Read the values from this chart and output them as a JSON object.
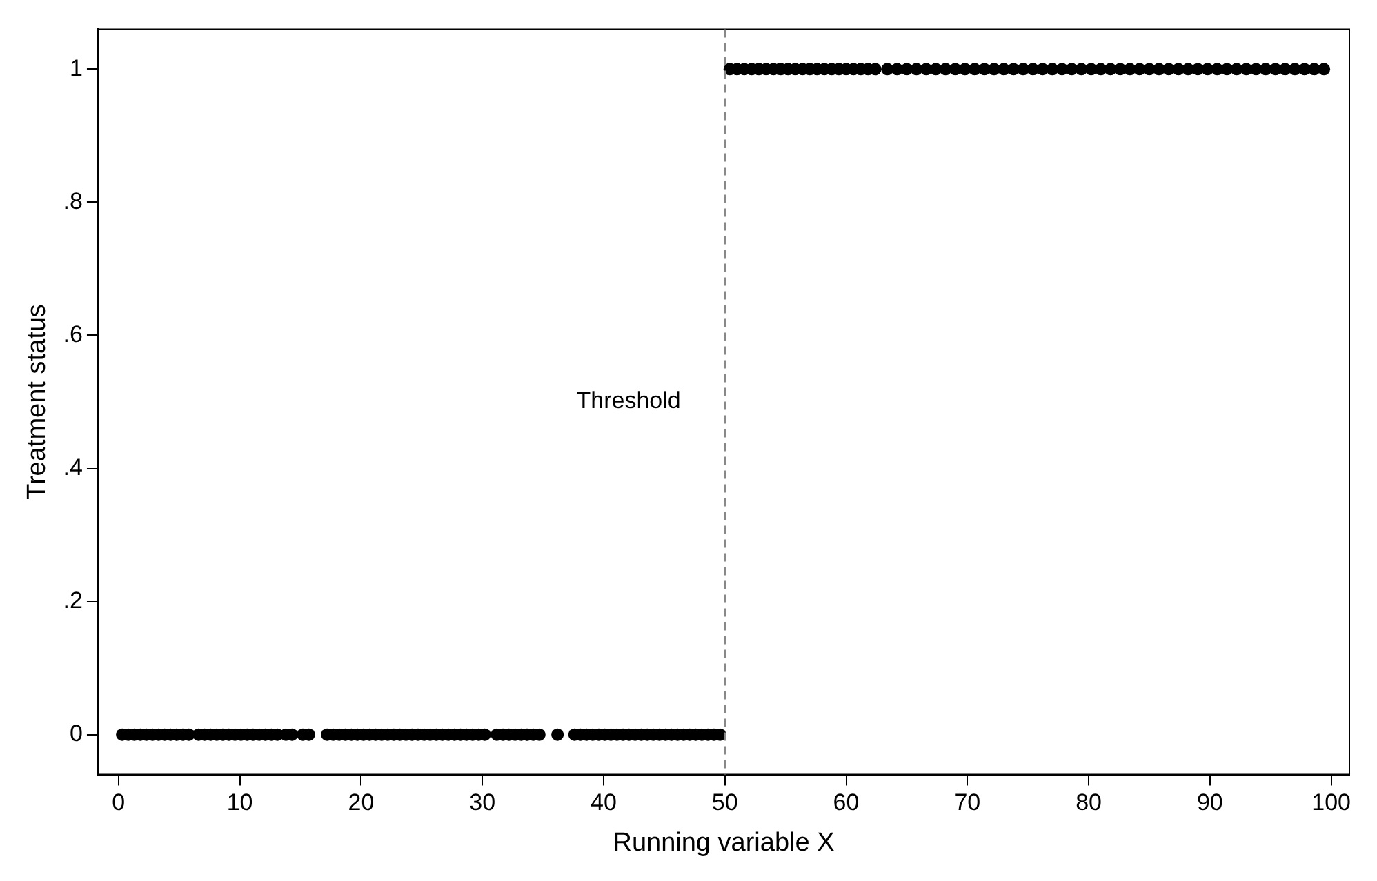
{
  "chart_data": {
    "type": "scatter",
    "xlabel": "Running variable X",
    "ylabel": "Treatment status",
    "xlim": [
      -1.7,
      101.5
    ],
    "xticks": [
      0,
      10,
      20,
      30,
      40,
      50,
      60,
      70,
      80,
      90,
      100
    ],
    "ylim": [
      -0.06,
      1.06
    ],
    "yticks": [
      0,
      {
        "value": 0.2,
        "label": ".2"
      },
      {
        "value": 0.4,
        "label": ".4"
      },
      {
        "value": 0.6,
        "label": ".6"
      },
      {
        "value": 0.8,
        "label": ".8"
      },
      1
    ],
    "grid": false,
    "legend": false,
    "marker": "circle",
    "ref_lines": [
      {
        "axis": "x",
        "value": 50,
        "label": "Threshold",
        "color": "#888888",
        "line_style": "dashed"
      }
    ],
    "series": [
      {
        "color": "#000000",
        "x": [
          0.3,
          0.8,
          1.3,
          1.8,
          2.3,
          2.8,
          3.3,
          3.8,
          4.3,
          4.8,
          5.3,
          5.8,
          6.6,
          7.1,
          7.6,
          8.1,
          8.6,
          9.1,
          9.6,
          10.1,
          10.6,
          11.1,
          11.6,
          12.1,
          12.6,
          13.1,
          13.8,
          14.3,
          15.2,
          15.7,
          17.2,
          17.7,
          18.2,
          18.7,
          19.2,
          19.7,
          20.2,
          20.7,
          21.2,
          21.7,
          22.2,
          22.7,
          23.2,
          23.7,
          24.2,
          24.7,
          25.2,
          25.7,
          26.2,
          26.7,
          27.2,
          27.7,
          28.2,
          28.7,
          29.2,
          29.7,
          30.2,
          31.2,
          31.7,
          32.2,
          32.7,
          33.2,
          33.7,
          34.2,
          34.7,
          36.2,
          37.6,
          38.1,
          38.6,
          39.1,
          39.6,
          40.1,
          40.6,
          41.1,
          41.6,
          42.1,
          42.6,
          43.1,
          43.6,
          44.1,
          44.6,
          45.1,
          45.6,
          46.1,
          46.6,
          47.1,
          47.6,
          48.1,
          48.6,
          49.1,
          49.6
        ],
        "values": [
          0,
          0,
          0,
          0,
          0,
          0,
          0,
          0,
          0,
          0,
          0,
          0,
          0,
          0,
          0,
          0,
          0,
          0,
          0,
          0,
          0,
          0,
          0,
          0,
          0,
          0,
          0,
          0,
          0,
          0,
          0,
          0,
          0,
          0,
          0,
          0,
          0,
          0,
          0,
          0,
          0,
          0,
          0,
          0,
          0,
          0,
          0,
          0,
          0,
          0,
          0,
          0,
          0,
          0,
          0,
          0,
          0,
          0,
          0,
          0,
          0,
          0,
          0,
          0,
          0,
          0,
          0,
          0,
          0,
          0,
          0,
          0,
          0,
          0,
          0,
          0,
          0,
          0,
          0,
          0,
          0,
          0,
          0,
          0,
          0,
          0,
          0,
          0,
          0,
          0,
          0
        ]
      },
      {
        "color": "#000000",
        "x": [
          50.4,
          51,
          51.6,
          52.2,
          52.8,
          53.4,
          54,
          54.6,
          55.2,
          55.8,
          56.4,
          57,
          57.6,
          58.2,
          58.8,
          59.4,
          60,
          60.6,
          61.2,
          61.8,
          62.4,
          63.4,
          64.2,
          65,
          65.8,
          66.6,
          67.4,
          68.2,
          69,
          69.8,
          70.6,
          71.4,
          72.2,
          73,
          73.8,
          74.6,
          75.4,
          76.2,
          77,
          77.8,
          78.6,
          79.4,
          80.2,
          81,
          81.8,
          82.6,
          83.4,
          84.2,
          85,
          85.8,
          86.6,
          87.4,
          88.2,
          89,
          89.8,
          90.6,
          91.4,
          92.2,
          93,
          93.8,
          94.6,
          95.4,
          96.2,
          97,
          97.8,
          98.6,
          99.4
        ],
        "values": [
          1,
          1,
          1,
          1,
          1,
          1,
          1,
          1,
          1,
          1,
          1,
          1,
          1,
          1,
          1,
          1,
          1,
          1,
          1,
          1,
          1,
          1,
          1,
          1,
          1,
          1,
          1,
          1,
          1,
          1,
          1,
          1,
          1,
          1,
          1,
          1,
          1,
          1,
          1,
          1,
          1,
          1,
          1,
          1,
          1,
          1,
          1,
          1,
          1,
          1,
          1,
          1,
          1,
          1,
          1,
          1,
          1,
          1,
          1,
          1,
          1,
          1,
          1,
          1,
          1,
          1,
          1
        ]
      }
    ]
  }
}
